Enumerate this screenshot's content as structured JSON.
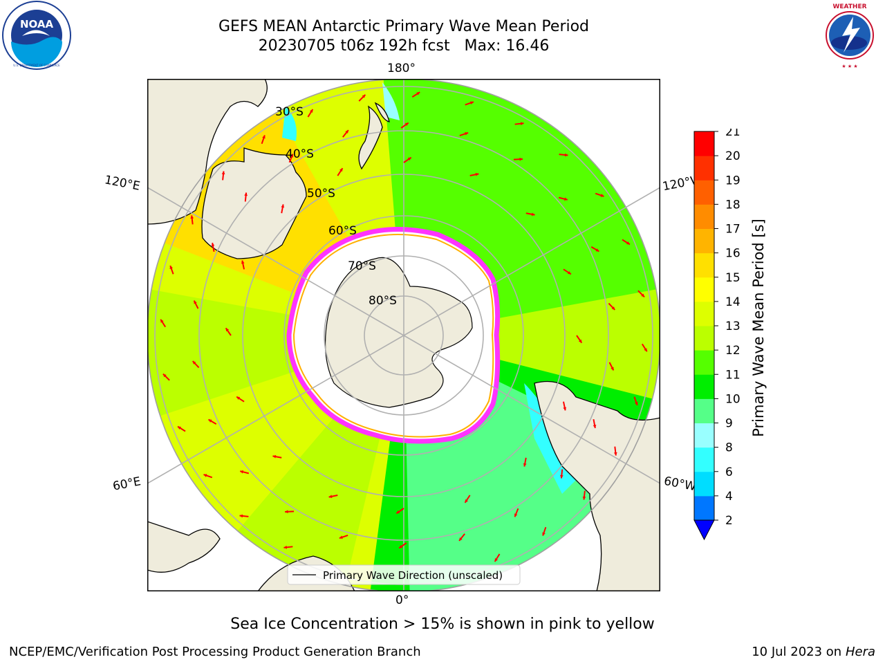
{
  "header": {
    "title_line1": "GEFS MEAN Antarctic Primary Wave Mean Period",
    "title_line2": "20230705 t06z 192h fcst   Max: 16.46"
  },
  "logos": {
    "noaa": {
      "text": "NOAA",
      "ring_text": "NATIONAL OCEANIC AND ATMOSPHERIC ADMINISTRATION · U.S. DEPARTMENT OF COMMERCE"
    },
    "nws": {
      "ring_text": "NATIONAL WEATHER SERVICE"
    }
  },
  "map": {
    "projection": "South Polar Stereographic",
    "longitude_labels": {
      "top": "180°",
      "bottom": "0°",
      "left_upper": "120°E",
      "left_lower": "60°E",
      "right_upper": "120°W",
      "right_lower": "60°W"
    },
    "latitude_labels": [
      "30°S",
      "40°S",
      "50°S",
      "60°S",
      "70°S",
      "80°S"
    ],
    "legend": {
      "label": "Primary Wave Direction (unscaled)"
    },
    "colors": {
      "land": "#efecdc",
      "sea_ice_fill": "#ffffff",
      "sea_ice_edge": [
        "#ff33ff",
        "#ffb000",
        "#ffff00"
      ],
      "arrow": "#ff0000",
      "grid": "#b0b0b0"
    }
  },
  "colorbar": {
    "label": "Primary Wave Mean Period [s]",
    "ticks": [
      "21",
      "20",
      "19",
      "18",
      "17",
      "16",
      "15",
      "14",
      "13",
      "12",
      "11",
      "10",
      "9",
      "8",
      "6",
      "4",
      "2"
    ],
    "colors_bottom_to_top": [
      "#0077ff",
      "#00ddff",
      "#33ffff",
      "#99ffff",
      "#55ff88",
      "#00ee00",
      "#55ff00",
      "#bbff00",
      "#ddff00",
      "#ffff00",
      "#ffe000",
      "#ffb400",
      "#ff8c00",
      "#ff6000",
      "#ff3000",
      "#ff0000"
    ],
    "extend_color": "#0000ff"
  },
  "notes": {
    "sea_ice": "Sea Ice Concentration > 15% is shown in pink to yellow"
  },
  "footer": {
    "left": "NCEP/EMC/Verification Post Processing Product Generation Branch",
    "right_prefix": "10 Jul 2023 on ",
    "right_machine": "Hera"
  }
}
